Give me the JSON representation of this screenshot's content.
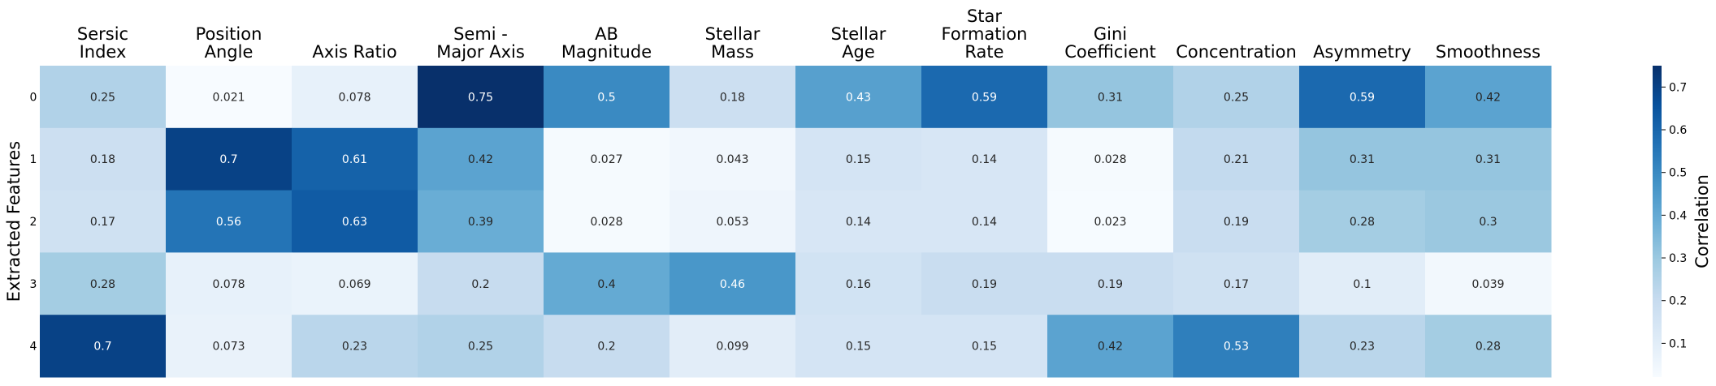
{
  "chart_data": {
    "type": "heatmap",
    "columns": [
      [
        "Sersic",
        "Index"
      ],
      [
        "Position",
        "Angle"
      ],
      [
        "Axis Ratio"
      ],
      [
        "Semi -",
        "Major Axis"
      ],
      [
        "AB",
        "Magnitude"
      ],
      [
        "Stellar",
        "Mass"
      ],
      [
        "Stellar",
        "Age"
      ],
      [
        "Star",
        "Formation",
        "Rate"
      ],
      [
        "Gini",
        "Coefficient"
      ],
      [
        "Concentration"
      ],
      [
        "Asymmetry"
      ],
      [
        "Smoothness"
      ]
    ],
    "rows": [
      "0",
      "1",
      "2",
      "3",
      "4"
    ],
    "values": [
      [
        0.25,
        0.021,
        0.078,
        0.75,
        0.5,
        0.18,
        0.43,
        0.59,
        0.31,
        0.25,
        0.59,
        0.42
      ],
      [
        0.18,
        0.7,
        0.61,
        0.42,
        0.027,
        0.043,
        0.15,
        0.14,
        0.028,
        0.21,
        0.31,
        0.31
      ],
      [
        0.17,
        0.56,
        0.63,
        0.39,
        0.028,
        0.053,
        0.14,
        0.14,
        0.023,
        0.19,
        0.28,
        0.3
      ],
      [
        0.28,
        0.078,
        0.069,
        0.2,
        0.4,
        0.46,
        0.16,
        0.19,
        0.19,
        0.17,
        0.1,
        0.039
      ],
      [
        0.7,
        0.073,
        0.23,
        0.25,
        0.2,
        0.099,
        0.15,
        0.15,
        0.42,
        0.53,
        0.23,
        0.28
      ]
    ],
    "ylabel": "Extracted Features",
    "colorbar": {
      "label": "Correlation",
      "ticks": [
        "0.1",
        "0.2",
        "0.3",
        "0.4",
        "0.5",
        "0.6",
        "0.7"
      ],
      "range": [
        0.021,
        0.75
      ]
    },
    "colormap": "Blues"
  }
}
